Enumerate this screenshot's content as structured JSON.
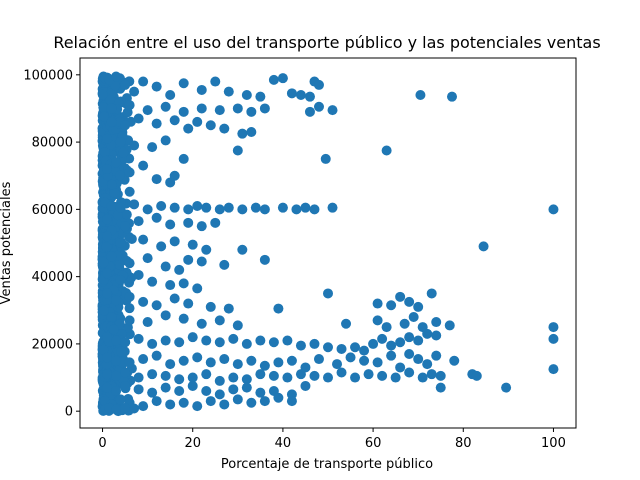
{
  "chart_data": {
    "type": "scatter",
    "title": "Relación entre el uso del transporte público y las potenciales ventas",
    "xlabel": "Porcentaje de transporte público",
    "ylabel": "Ventas potenciales",
    "xlim": [
      -5,
      105
    ],
    "ylim": [
      -5000,
      105000
    ],
    "xticks": [
      0,
      20,
      40,
      60,
      80,
      100
    ],
    "yticks": [
      0,
      20000,
      40000,
      60000,
      80000,
      100000
    ],
    "grid": false,
    "color": "#1f77b4",
    "series": [
      {
        "name": "",
        "points": [
          [
            0.5,
            99000
          ],
          [
            1.5,
            98500
          ],
          [
            3,
            99500
          ],
          [
            5,
            97000
          ],
          [
            7,
            95000
          ],
          [
            9,
            98000
          ],
          [
            12,
            96500
          ],
          [
            15,
            94000
          ],
          [
            18,
            97500
          ],
          [
            22,
            95500
          ],
          [
            25,
            98000
          ],
          [
            28,
            95000
          ],
          [
            32,
            94000
          ],
          [
            35,
            93500
          ],
          [
            38,
            98500
          ],
          [
            40,
            99000
          ],
          [
            42,
            94500
          ],
          [
            44,
            94000
          ],
          [
            46,
            93500
          ],
          [
            47,
            98000
          ],
          [
            48,
            97000
          ],
          [
            70.5,
            94000
          ],
          [
            77.5,
            93500
          ],
          [
            2,
            90000
          ],
          [
            6,
            91000
          ],
          [
            10,
            89500
          ],
          [
            14,
            90500
          ],
          [
            18,
            89000
          ],
          [
            22,
            90000
          ],
          [
            26,
            89500
          ],
          [
            30,
            90000
          ],
          [
            33,
            89000
          ],
          [
            36,
            90000
          ],
          [
            46,
            89000
          ],
          [
            48,
            90500
          ],
          [
            51,
            89500
          ],
          [
            2,
            86000
          ],
          [
            5,
            85000
          ],
          [
            8,
            87000
          ],
          [
            12,
            85500
          ],
          [
            16,
            86500
          ],
          [
            19,
            84000
          ],
          [
            21,
            86000
          ],
          [
            24,
            85000
          ],
          [
            27,
            84000
          ],
          [
            31,
            82500
          ],
          [
            33,
            83000
          ],
          [
            1,
            81000
          ],
          [
            4,
            80000
          ],
          [
            7,
            79000
          ],
          [
            11,
            78500
          ],
          [
            14,
            80500
          ],
          [
            18,
            75000
          ],
          [
            30,
            77500
          ],
          [
            49.5,
            75000
          ],
          [
            63,
            77500
          ],
          [
            1,
            72000
          ],
          [
            3,
            74000
          ],
          [
            6,
            71000
          ],
          [
            9,
            73000
          ],
          [
            12,
            69000
          ],
          [
            15,
            68000
          ],
          [
            16,
            70000
          ],
          [
            0.5,
            62000
          ],
          [
            2,
            61000
          ],
          [
            4,
            60500
          ],
          [
            7,
            61500
          ],
          [
            10,
            60000
          ],
          [
            13,
            61000
          ],
          [
            16,
            60500
          ],
          [
            19,
            60000
          ],
          [
            21,
            61000
          ],
          [
            23,
            60500
          ],
          [
            26,
            60000
          ],
          [
            28,
            60500
          ],
          [
            31,
            60000
          ],
          [
            34,
            60500
          ],
          [
            36,
            60000
          ],
          [
            40,
            60500
          ],
          [
            43,
            60000
          ],
          [
            45,
            60500
          ],
          [
            47,
            60000
          ],
          [
            51,
            60500
          ],
          [
            100,
            60000
          ],
          [
            1,
            57000
          ],
          [
            5,
            55000
          ],
          [
            8,
            56500
          ],
          [
            12,
            57500
          ],
          [
            15,
            55500
          ],
          [
            19,
            56000
          ],
          [
            22,
            55000
          ],
          [
            25,
            56000
          ],
          [
            1,
            52000
          ],
          [
            4,
            50000
          ],
          [
            9,
            51000
          ],
          [
            13,
            49000
          ],
          [
            16,
            50500
          ],
          [
            20,
            49500
          ],
          [
            23,
            48000
          ],
          [
            31,
            48000
          ],
          [
            84.5,
            49000
          ],
          [
            2,
            46000
          ],
          [
            6,
            44000
          ],
          [
            10,
            45500
          ],
          [
            14,
            43000
          ],
          [
            17,
            42000
          ],
          [
            19,
            45000
          ],
          [
            22,
            44500
          ],
          [
            27,
            43500
          ],
          [
            36,
            45000
          ],
          [
            1,
            41000
          ],
          [
            4,
            39000
          ],
          [
            8,
            40500
          ],
          [
            11,
            38500
          ],
          [
            15,
            37500
          ],
          [
            18,
            38000
          ],
          [
            21,
            36500
          ],
          [
            1,
            35000
          ],
          [
            3,
            33000
          ],
          [
            6,
            34000
          ],
          [
            9,
            32500
          ],
          [
            12,
            31500
          ],
          [
            16,
            33500
          ],
          [
            19,
            32000
          ],
          [
            24,
            31000
          ],
          [
            28,
            30500
          ],
          [
            39,
            30500
          ],
          [
            50,
            35000
          ],
          [
            61,
            32000
          ],
          [
            64,
            31500
          ],
          [
            66,
            34000
          ],
          [
            68,
            32500
          ],
          [
            70,
            31000
          ],
          [
            73,
            35000
          ],
          [
            2,
            28000
          ],
          [
            6,
            27000
          ],
          [
            10,
            26500
          ],
          [
            14,
            28500
          ],
          [
            18,
            27500
          ],
          [
            22,
            26000
          ],
          [
            26,
            27000
          ],
          [
            30,
            25500
          ],
          [
            54,
            26000
          ],
          [
            61,
            27000
          ],
          [
            63,
            25000
          ],
          [
            67,
            26000
          ],
          [
            69,
            28000
          ],
          [
            71,
            25000
          ],
          [
            74,
            26500
          ],
          [
            77,
            25500
          ],
          [
            100,
            25000
          ],
          [
            1,
            22000
          ],
          [
            3,
            21000
          ],
          [
            5,
            20500
          ],
          [
            8,
            21500
          ],
          [
            11,
            20000
          ],
          [
            14,
            21000
          ],
          [
            17,
            20500
          ],
          [
            20,
            22000
          ],
          [
            23,
            21000
          ],
          [
            26,
            20500
          ],
          [
            29,
            21500
          ],
          [
            32,
            20000
          ],
          [
            35,
            21000
          ],
          [
            38,
            20500
          ],
          [
            41,
            21000
          ],
          [
            44,
            19500
          ],
          [
            47,
            20000
          ],
          [
            50,
            19000
          ],
          [
            53,
            18500
          ],
          [
            56,
            19000
          ],
          [
            58,
            18000
          ],
          [
            60,
            20000
          ],
          [
            62,
            21500
          ],
          [
            64,
            19500
          ],
          [
            66,
            20500
          ],
          [
            68,
            22000
          ],
          [
            70,
            21000
          ],
          [
            72,
            23000
          ],
          [
            74,
            22500
          ],
          [
            100,
            21500
          ],
          [
            1,
            16000
          ],
          [
            3,
            15000
          ],
          [
            6,
            14500
          ],
          [
            9,
            15500
          ],
          [
            12,
            16500
          ],
          [
            15,
            14000
          ],
          [
            18,
            15000
          ],
          [
            21,
            16000
          ],
          [
            24,
            14500
          ],
          [
            27,
            15500
          ],
          [
            30,
            14000
          ],
          [
            33,
            15000
          ],
          [
            36,
            13500
          ],
          [
            39,
            14500
          ],
          [
            42,
            15000
          ],
          [
            45,
            13000
          ],
          [
            48,
            15500
          ],
          [
            52,
            14000
          ],
          [
            55,
            16000
          ],
          [
            58,
            15000
          ],
          [
            61,
            14500
          ],
          [
            64,
            16500
          ],
          [
            66,
            13000
          ],
          [
            68,
            17000
          ],
          [
            70,
            15500
          ],
          [
            72,
            14000
          ],
          [
            74,
            16500
          ],
          [
            78,
            15000
          ],
          [
            1,
            11000
          ],
          [
            3,
            10500
          ],
          [
            5,
            11500
          ],
          [
            8,
            10000
          ],
          [
            11,
            11000
          ],
          [
            14,
            10500
          ],
          [
            17,
            9500
          ],
          [
            20,
            10000
          ],
          [
            23,
            11000
          ],
          [
            26,
            9000
          ],
          [
            29,
            10000
          ],
          [
            32,
            9500
          ],
          [
            35,
            11000
          ],
          [
            38,
            10500
          ],
          [
            41,
            10000
          ],
          [
            44,
            11000
          ],
          [
            47,
            10500
          ],
          [
            50,
            10000
          ],
          [
            53,
            11500
          ],
          [
            56,
            10000
          ],
          [
            59,
            11000
          ],
          [
            62,
            10500
          ],
          [
            65,
            10000
          ],
          [
            68,
            11500
          ],
          [
            71,
            10000
          ],
          [
            73,
            11000
          ],
          [
            75,
            10500
          ],
          [
            82,
            11000
          ],
          [
            83,
            10500
          ],
          [
            100,
            12500
          ],
          [
            1,
            7000
          ],
          [
            3,
            6000
          ],
          [
            5,
            7500
          ],
          [
            8,
            6500
          ],
          [
            11,
            5500
          ],
          [
            14,
            7000
          ],
          [
            17,
            6000
          ],
          [
            20,
            7500
          ],
          [
            23,
            6000
          ],
          [
            26,
            5000
          ],
          [
            29,
            6500
          ],
          [
            32,
            7000
          ],
          [
            35,
            5500
          ],
          [
            38,
            6000
          ],
          [
            42,
            5000
          ],
          [
            45,
            7500
          ],
          [
            89.5,
            7000
          ],
          [
            75,
            7000
          ],
          [
            0.5,
            3000
          ],
          [
            2,
            2000
          ],
          [
            4,
            3500
          ],
          [
            6,
            2500
          ],
          [
            9,
            1500
          ],
          [
            12,
            3000
          ],
          [
            15,
            2000
          ],
          [
            18,
            2500
          ],
          [
            21,
            1500
          ],
          [
            24,
            3000
          ],
          [
            27,
            2000
          ],
          [
            30,
            3500
          ],
          [
            33,
            2500
          ],
          [
            36,
            3000
          ],
          [
            39,
            4000
          ],
          [
            42,
            3000
          ],
          [
            0.5,
            500
          ],
          [
            1.5,
            1000
          ],
          [
            3,
            500
          ],
          [
            5,
            1000
          ],
          [
            7,
            800
          ]
        ]
      }
    ]
  }
}
